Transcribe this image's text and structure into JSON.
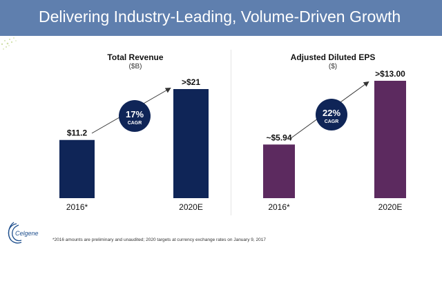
{
  "header": {
    "title": "Delivering Industry-Leading, Volume-Driven Growth"
  },
  "colors": {
    "header_bg": "#5f7fae",
    "revenue_bar": "#0f2557",
    "eps_bar": "#5c2a5f",
    "cagr_badge": "#0f2557"
  },
  "logo": {
    "text": "Celgene"
  },
  "chart_data": [
    {
      "type": "bar",
      "title": "Total Revenue",
      "subtitle": "($B)",
      "categories": [
        "2016*",
        "2020E"
      ],
      "values": [
        11.2,
        21
      ],
      "data_labels": [
        "$11.2",
        ">$21"
      ],
      "ylim": [
        0,
        21
      ],
      "grid": false,
      "annotation": {
        "value": "17%",
        "label": "CAGR"
      }
    },
    {
      "type": "bar",
      "title": "Adjusted Diluted EPS",
      "subtitle": "($)",
      "categories": [
        "2016*",
        "2020E"
      ],
      "values": [
        5.94,
        13.0
      ],
      "data_labels": [
        "~$5.94",
        ">$13.00"
      ],
      "ylim": [
        0,
        13.0
      ],
      "grid": false,
      "annotation": {
        "value": "22%",
        "label": "CAGR"
      }
    }
  ],
  "footnote": "*2016 amounts are preliminary and unaudited; 2020 targets at currency exchange rates on January 9, 2017"
}
